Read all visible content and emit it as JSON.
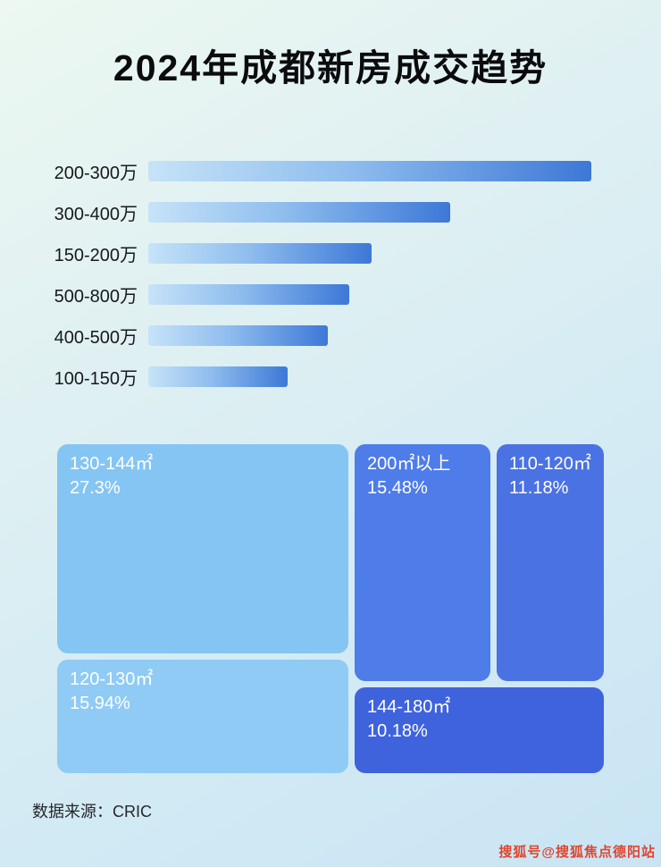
{
  "page": {
    "title": "2024年成都新房成交趋势",
    "source_label": "数据来源：CRIC",
    "watermark": "搜狐号@搜狐焦点德阳站"
  },
  "colors": {
    "bar_gradient_start": "#c6e3f8",
    "bar_gradient_end": "#3d78d7",
    "watermark_red": "#e0452f"
  },
  "chart_data": [
    {
      "type": "bar",
      "title": "2024年成都新房成交趋势",
      "orientation": "horizontal",
      "categories": [
        "200-300万",
        "300-400万",
        "150-200万",
        "500-800万",
        "400-500万",
        "100-150万"
      ],
      "values": [
        100,
        68.1,
        50.5,
        45.3,
        40.6,
        31.5
      ],
      "value_unit": "relative bar length as % of longest bar (no numeric axis labels shown in image)",
      "xlabel": "",
      "ylabel": "",
      "grid": false,
      "legend": false
    },
    {
      "type": "treemap",
      "items": [
        {
          "label": "130-144㎡",
          "pct_label": "27.3%",
          "value": 27.3,
          "color": "#84c5f3"
        },
        {
          "label": "200㎡以上",
          "pct_label": "15.48%",
          "value": 15.48,
          "color": "#4e7ce9"
        },
        {
          "label": "110-120㎡",
          "pct_label": "11.18%",
          "value": 11.18,
          "color": "#4a72e3"
        },
        {
          "label": "120-130㎡",
          "pct_label": "15.94%",
          "value": 15.94,
          "color": "#8fcbf5"
        },
        {
          "label": "144-180㎡",
          "pct_label": "10.18%",
          "value": 10.18,
          "color": "#3f63dc"
        }
      ]
    }
  ]
}
